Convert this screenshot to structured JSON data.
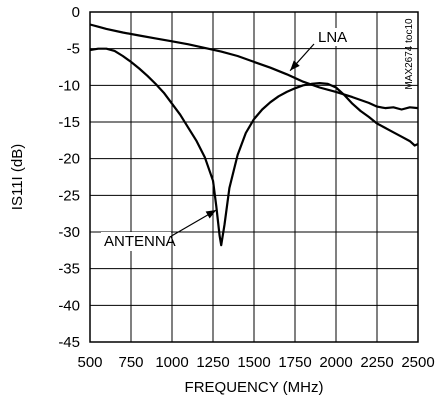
{
  "chart_data": {
    "type": "line",
    "xlabel": "FREQUENCY (MHz)",
    "ylabel": "IS11I (dB)",
    "xlim": [
      500,
      2500
    ],
    "ylim": [
      -45,
      0
    ],
    "x_ticks": [
      500,
      750,
      1000,
      1250,
      1500,
      1750,
      2000,
      2250,
      2500
    ],
    "y_ticks": [
      0,
      -5,
      -10,
      -15,
      -20,
      -25,
      -30,
      -35,
      -40,
      -45
    ],
    "grid": true,
    "corner_label": "MAX2674 toc10",
    "series": [
      {
        "name": "LNA",
        "x": [
          500,
          550,
          600,
          700,
          800,
          900,
          1000,
          1100,
          1200,
          1300,
          1400,
          1500,
          1600,
          1700,
          1800,
          1900,
          2000,
          2100,
          2200,
          2250,
          2300,
          2350,
          2400,
          2450,
          2500
        ],
        "y": [
          -1.7,
          -2.0,
          -2.3,
          -2.8,
          -3.2,
          -3.6,
          -4.0,
          -4.4,
          -4.9,
          -5.4,
          -6.0,
          -6.8,
          -7.6,
          -8.5,
          -9.5,
          -10.3,
          -10.9,
          -11.6,
          -12.4,
          -12.9,
          -13.1,
          -13.0,
          -13.3,
          -13.0,
          -13.1
        ]
      },
      {
        "name": "ANTENNA",
        "x": [
          500,
          550,
          600,
          650,
          700,
          750,
          800,
          850,
          900,
          950,
          1000,
          1050,
          1100,
          1150,
          1200,
          1250,
          1270,
          1290,
          1300,
          1320,
          1350,
          1400,
          1450,
          1500,
          1550,
          1600,
          1650,
          1700,
          1750,
          1800,
          1850,
          1900,
          1950,
          2000,
          2050,
          2100,
          2150,
          2200,
          2250,
          2300,
          2350,
          2400,
          2450,
          2480,
          2500
        ],
        "y": [
          -5.2,
          -5.0,
          -5.0,
          -5.3,
          -6.0,
          -6.8,
          -7.7,
          -8.7,
          -9.8,
          -11.0,
          -12.5,
          -14.0,
          -15.8,
          -17.6,
          -19.8,
          -23.0,
          -26.5,
          -30.5,
          -31.8,
          -29.0,
          -24.0,
          -19.5,
          -16.5,
          -14.6,
          -13.3,
          -12.3,
          -11.5,
          -10.9,
          -10.4,
          -10.0,
          -9.8,
          -9.7,
          -9.8,
          -10.3,
          -11.3,
          -12.5,
          -13.5,
          -14.3,
          -15.2,
          -15.8,
          -16.4,
          -17.0,
          -17.6,
          -18.2,
          -18.0
        ]
      }
    ],
    "annotations": [
      {
        "text": "LNA",
        "x": 1720,
        "y": -8.0
      },
      {
        "text": "ANTENNA",
        "x": 1270,
        "y": -27.0
      }
    ]
  }
}
